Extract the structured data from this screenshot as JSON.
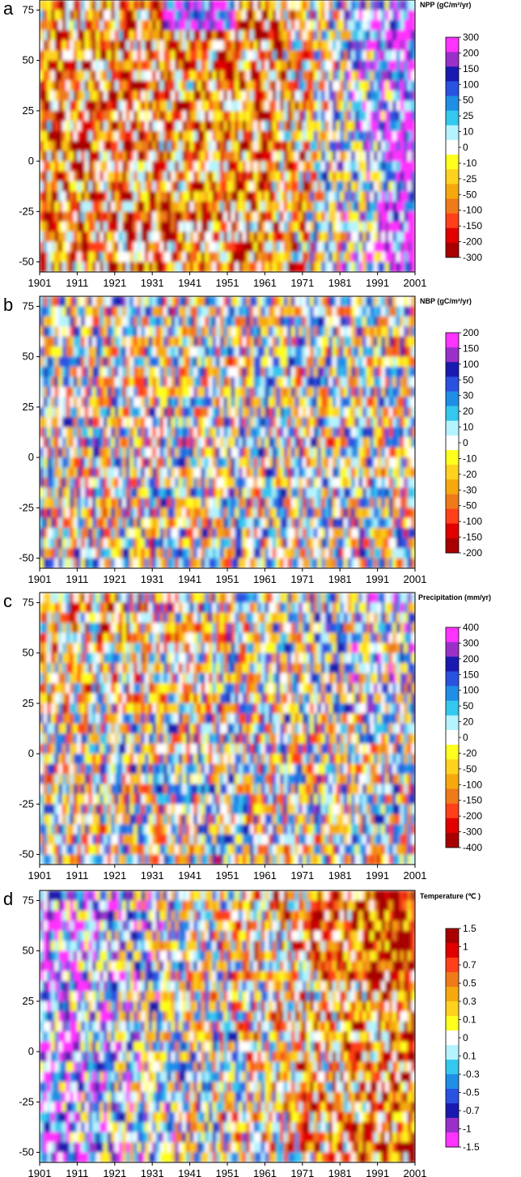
{
  "chart_data": [
    {
      "panel": "a",
      "type": "heatmap",
      "colorbar_title": "NPP (gC/m²/yr)",
      "x_ticks": [
        "1901",
        "1911",
        "1921",
        "1931",
        "1941",
        "1951",
        "1961",
        "1971",
        "1981",
        "1991",
        "2001"
      ],
      "y_ticks": [
        "75",
        "50",
        "25",
        "0",
        "-25",
        "-50"
      ],
      "xlim": [
        1901,
        2001
      ],
      "ylim": [
        -55,
        80
      ],
      "colorbar_levels": [
        "300",
        "200",
        "150",
        "100",
        "50",
        "25",
        "10",
        "0",
        "-10",
        "-25",
        "-50",
        "-100",
        "-150",
        "-200",
        "-300"
      ],
      "colors": [
        "#ff33ff",
        "#9b30c8",
        "#1a1ab0",
        "#2a52e0",
        "#1f8fe6",
        "#35c8ef",
        "#b5f4ff",
        "#ffffff",
        "#ffff1f",
        "#ffd21f",
        "#f5a90f",
        "#ef7a1a",
        "#ff4019",
        "#e00000",
        "#a80000"
      ]
    },
    {
      "panel": "b",
      "type": "heatmap",
      "colorbar_title": "NBP (gC/m²/yr)",
      "x_ticks": [
        "1901",
        "1911",
        "1921",
        "1931",
        "1941",
        "1951",
        "1961",
        "1971",
        "1981",
        "1991",
        "2001"
      ],
      "y_ticks": [
        "75",
        "50",
        "25",
        "0",
        "-25",
        "-50"
      ],
      "xlim": [
        1901,
        2001
      ],
      "ylim": [
        -55,
        80
      ],
      "colorbar_levels": [
        "200",
        "150",
        "100",
        "50",
        "30",
        "20",
        "10",
        "0",
        "-10",
        "-20",
        "-30",
        "-50",
        "-100",
        "-150",
        "-200"
      ],
      "colors": [
        "#ff33ff",
        "#9b30c8",
        "#1a1ab0",
        "#2a52e0",
        "#1f8fe6",
        "#35c8ef",
        "#b5f4ff",
        "#ffffff",
        "#ffff1f",
        "#ffd21f",
        "#f5a90f",
        "#ef7a1a",
        "#ff4019",
        "#e00000",
        "#a80000"
      ]
    },
    {
      "panel": "c",
      "type": "heatmap",
      "colorbar_title": "Precipitation (mm/yr)",
      "x_ticks": [
        "1901",
        "1911",
        "1921",
        "1931",
        "1941",
        "1951",
        "1961",
        "1971",
        "1981",
        "1991",
        "2001"
      ],
      "y_ticks": [
        "75",
        "50",
        "25",
        "0",
        "-25",
        "-50"
      ],
      "xlim": [
        1901,
        2001
      ],
      "ylim": [
        -55,
        80
      ],
      "colorbar_levels": [
        "400",
        "300",
        "200",
        "150",
        "100",
        "50",
        "20",
        "0",
        "-20",
        "-50",
        "-100",
        "-150",
        "-200",
        "-300",
        "-400"
      ],
      "colors": [
        "#ff33ff",
        "#9b30c8",
        "#1a1ab0",
        "#2a52e0",
        "#1f8fe6",
        "#35c8ef",
        "#b5f4ff",
        "#ffffff",
        "#ffff1f",
        "#ffd21f",
        "#f5a90f",
        "#ef7a1a",
        "#ff4019",
        "#e00000",
        "#a80000"
      ]
    },
    {
      "panel": "d",
      "type": "heatmap",
      "colorbar_title": "Temperature (℃ )",
      "x_ticks": [
        "1901",
        "1911",
        "1921",
        "1931",
        "1941",
        "1951",
        "1961",
        "1971",
        "1981",
        "1991",
        "2001"
      ],
      "y_ticks": [
        "75",
        "50",
        "25",
        "0",
        "-25",
        "-50"
      ],
      "xlim": [
        1901,
        2001
      ],
      "ylim": [
        -55,
        80
      ],
      "colorbar_levels": [
        "1.5",
        "1",
        "0.7",
        "0.5",
        "0.3",
        "0.1",
        "0",
        "0.1",
        "-0.3",
        "-0.5",
        "-0.7",
        "-1",
        "-1.5"
      ],
      "colors": [
        "#a80000",
        "#e00000",
        "#ff4019",
        "#ef7a1a",
        "#f5a90f",
        "#ffd21f",
        "#ffff1f",
        "#ffffff",
        "#b5f4ff",
        "#35c8ef",
        "#1f8fe6",
        "#2a52e0",
        "#1a1ab0",
        "#9b30c8",
        "#ff33ff"
      ]
    }
  ]
}
